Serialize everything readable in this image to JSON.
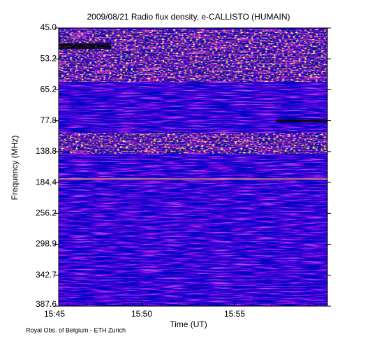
{
  "chart_data": {
    "type": "spectrogram",
    "title": "2009/08/21  Radio flux density, e-CALLISTO (HUMAIN)",
    "y_label": "Frequency (MHz)",
    "x_label": "Time (UT)",
    "credit": "Royal Obs. of Belgium - ETH Zurich",
    "ylim": [
      45,
      387.6
    ],
    "yticks": [
      {
        "value": 45,
        "label": "45.0"
      },
      {
        "value": 53.2,
        "label": "53.2"
      },
      {
        "value": 65.2,
        "label": "65.2"
      },
      {
        "value": 77.8,
        "label": "77.8"
      },
      {
        "value": 138.8,
        "label": "138.8"
      },
      {
        "value": 184.4,
        "label": "184.4"
      },
      {
        "value": 256.2,
        "label": "256.2"
      },
      {
        "value": 298.9,
        "label": "298.9"
      },
      {
        "value": 342.7,
        "label": "342.7"
      },
      {
        "value": 387.6,
        "label": "387.6"
      }
    ],
    "xticks": [
      "15:45",
      "15:50",
      "15:55"
    ]
  }
}
